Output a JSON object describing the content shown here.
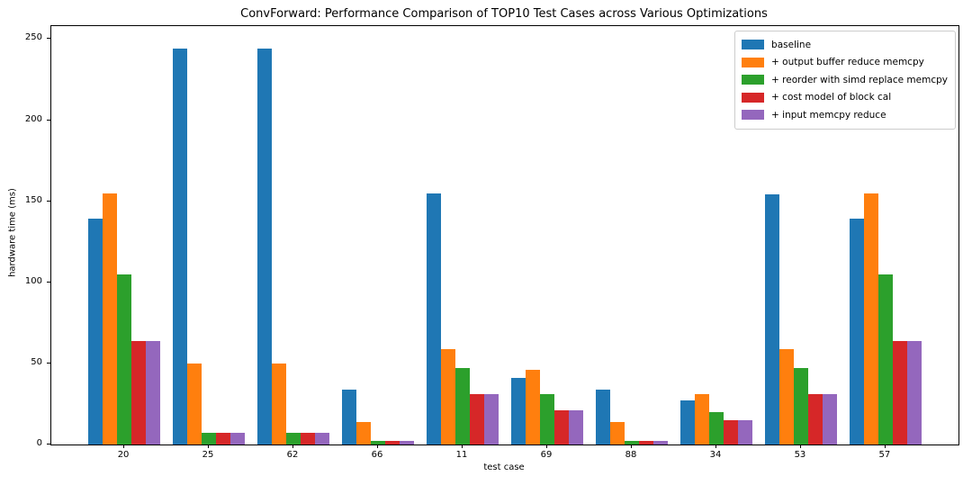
{
  "title": "ConvForward: Performance Comparison of TOP10 Test Cases across Various Optimizations",
  "chart_data": {
    "type": "bar",
    "title": "ConvForward: Performance Comparison of TOP10 Test Cases across Various Optimizations",
    "xlabel": "test case",
    "ylabel": "hardware time (ms)",
    "categories": [
      "20",
      "25",
      "62",
      "66",
      "11",
      "69",
      "88",
      "34",
      "53",
      "57"
    ],
    "series": [
      {
        "name": "baseline",
        "color": "#1f77b4",
        "values": [
          139,
          244,
          244,
          34,
          155,
          41,
          34,
          27,
          154,
          139
        ]
      },
      {
        "name": "+ output buffer reduce memcpy",
        "color": "#ff7f0e",
        "values": [
          155,
          50,
          50,
          14,
          59,
          46,
          14,
          31,
          59,
          155
        ]
      },
      {
        "name": "+ reorder with simd replace memcpy",
        "color": "#2ca02c",
        "values": [
          105,
          7,
          7,
          2,
          47,
          31,
          2,
          20,
          47,
          105
        ]
      },
      {
        "name": "+ cost model of block cal",
        "color": "#d62728",
        "values": [
          64,
          7,
          7,
          2,
          31,
          21,
          2,
          15,
          31,
          64
        ]
      },
      {
        "name": "+ input memcpy reduce",
        "color": "#9467bd",
        "values": [
          64,
          7,
          7,
          2,
          31,
          21,
          2,
          15,
          31,
          64
        ]
      }
    ],
    "yticks": [
      0,
      50,
      100,
      150,
      200,
      250
    ],
    "ylim": [
      0,
      258
    ],
    "grid": false,
    "legend_position": "upper right"
  }
}
